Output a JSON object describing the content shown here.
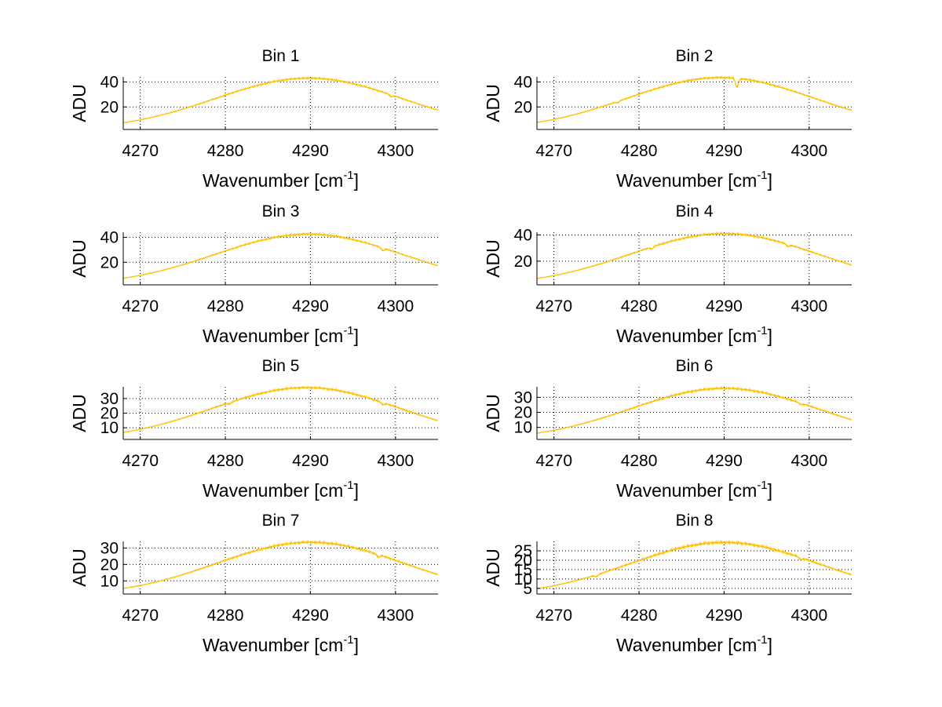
{
  "chart_data": [
    {
      "type": "line",
      "title": "Bin 1",
      "xlabel_main": "Wavenumber [cm",
      "xlabel_sup": "-1",
      "xlabel_end": "]",
      "ylabel": "ADU",
      "xlim": [
        4268,
        4305
      ],
      "ylim": [
        2,
        44
      ],
      "xticks": [
        4270,
        4280,
        4290,
        4300
      ],
      "yticks": [
        20,
        40
      ],
      "grid": true,
      "series": [
        {
          "color": "#ffc000",
          "amp": 41.5,
          "width": 11.0,
          "center": 4289.8,
          "base": 1.5,
          "dips": [
            [
              4299.5,
              1.5
            ]
          ]
        }
      ]
    },
    {
      "type": "line",
      "title": "Bin 2",
      "xlabel_main": "Wavenumber [cm",
      "xlabel_sup": "-1",
      "xlabel_end": "]",
      "ylabel": "ADU",
      "xlim": [
        4268,
        4305
      ],
      "ylim": [
        2,
        44
      ],
      "xticks": [
        4270,
        4280,
        4290,
        4300
      ],
      "yticks": [
        20,
        40
      ],
      "grid": true,
      "series": [
        {
          "color": "#ffc000",
          "amp": 42.0,
          "width": 11.0,
          "center": 4289.6,
          "base": 1.5,
          "dips": [
            [
              4291.5,
              7.0
            ],
            [
              4277.5,
              1.0
            ]
          ]
        }
      ]
    },
    {
      "type": "line",
      "title": "Bin 3",
      "xlabel_main": "Wavenumber [cm",
      "xlabel_sup": "-1",
      "xlabel_end": "]",
      "ylabel": "ADU",
      "xlim": [
        4268,
        4305
      ],
      "ylim": [
        2,
        44
      ],
      "xticks": [
        4270,
        4280,
        4290,
        4300
      ],
      "yticks": [
        20,
        40
      ],
      "grid": true,
      "series": [
        {
          "color": "#ffc000",
          "amp": 41.0,
          "width": 11.0,
          "center": 4289.8,
          "base": 1.5,
          "dips": [
            [
              4298.5,
              2.0
            ]
          ]
        }
      ]
    },
    {
      "type": "line",
      "title": "Bin 4",
      "xlabel_main": "Wavenumber [cm",
      "xlabel_sup": "-1",
      "xlabel_end": "]",
      "ylabel": "ADU",
      "xlim": [
        4268,
        4305
      ],
      "ylim": [
        2,
        42
      ],
      "xticks": [
        4270,
        4280,
        4290,
        4300
      ],
      "yticks": [
        20,
        40
      ],
      "grid": true,
      "series": [
        {
          "color": "#ffc000",
          "amp": 39.5,
          "width": 11.0,
          "center": 4290.0,
          "base": 1.5,
          "dips": [
            [
              4281.5,
              1.5
            ],
            [
              4297.5,
              1.5
            ]
          ]
        }
      ]
    },
    {
      "type": "line",
      "title": "Bin 5",
      "xlabel_main": "Wavenumber [cm",
      "xlabel_sup": "-1",
      "xlabel_end": "]",
      "ylabel": "ADU",
      "xlim": [
        4268,
        4305
      ],
      "ylim": [
        2,
        38
      ],
      "xticks": [
        4270,
        4280,
        4290,
        4300
      ],
      "yticks": [
        10,
        20,
        30
      ],
      "grid": true,
      "series": [
        {
          "color": "#ffc000",
          "amp": 36.0,
          "width": 11.0,
          "center": 4289.5,
          "base": 1.5,
          "dips": [
            [
              4298.5,
              1.5
            ],
            [
              4280.5,
              1.0
            ]
          ]
        }
      ]
    },
    {
      "type": "line",
      "title": "Bin 6",
      "xlabel_main": "Wavenumber [cm",
      "xlabel_sup": "-1",
      "xlabel_end": "]",
      "ylabel": "ADU",
      "xlim": [
        4268,
        4305
      ],
      "ylim": [
        2,
        37
      ],
      "xticks": [
        4270,
        4280,
        4290,
        4300
      ],
      "yticks": [
        10,
        20,
        30
      ],
      "grid": true,
      "series": [
        {
          "color": "#ffc000",
          "amp": 34.5,
          "width": 11.0,
          "center": 4290.0,
          "base": 1.5,
          "dips": [
            [
              4299.0,
              1.0
            ]
          ]
        }
      ]
    },
    {
      "type": "line",
      "title": "Bin 7",
      "xlabel_main": "Wavenumber [cm",
      "xlabel_sup": "-1",
      "xlabel_end": "]",
      "ylabel": "ADU",
      "xlim": [
        4268,
        4305
      ],
      "ylim": [
        2,
        34
      ],
      "xticks": [
        4270,
        4280,
        4290,
        4300
      ],
      "yticks": [
        10,
        20,
        30
      ],
      "grid": true,
      "series": [
        {
          "color": "#ffc000",
          "amp": 32.5,
          "width": 11.0,
          "center": 4290.0,
          "base": 1.0,
          "dips": [
            [
              4298.0,
              1.5
            ]
          ]
        }
      ]
    },
    {
      "type": "line",
      "title": "Bin 8",
      "xlabel_main": "Wavenumber [cm",
      "xlabel_sup": "-1",
      "xlabel_end": "]",
      "ylabel": "ADU",
      "xlim": [
        4268,
        4305
      ],
      "ylim": [
        2,
        30
      ],
      "xticks": [
        4270,
        4280,
        4290,
        4300
      ],
      "yticks": [
        5,
        10,
        15,
        20,
        25
      ],
      "grid": true,
      "series": [
        {
          "color": "#ffc000",
          "amp": 28.5,
          "width": 11.0,
          "center": 4290.0,
          "base": 1.0,
          "dips": [
            [
              4275.0,
              1.0
            ],
            [
              4299.0,
              1.0
            ]
          ]
        }
      ]
    }
  ]
}
